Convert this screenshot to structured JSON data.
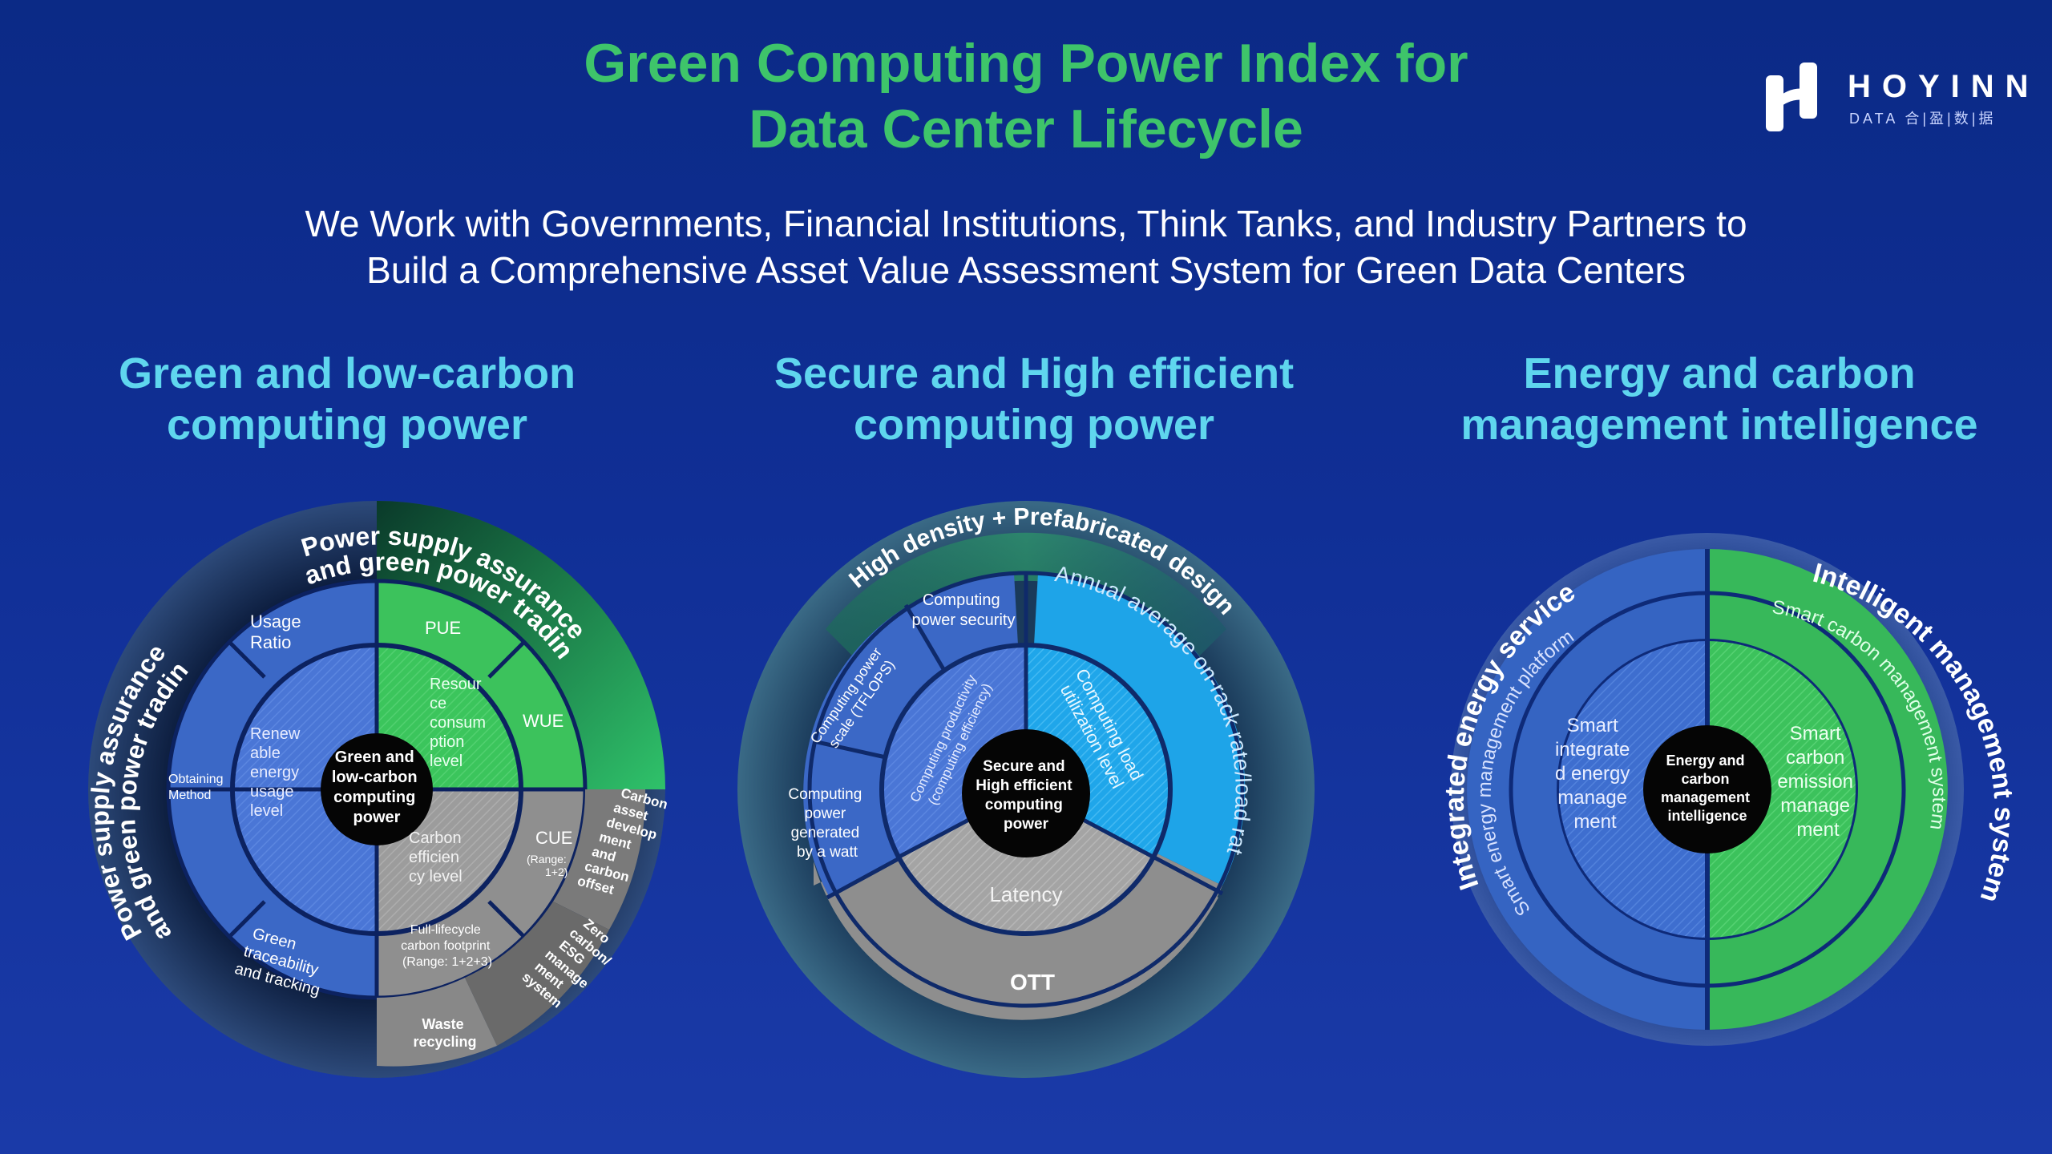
{
  "header": {
    "title_line1": "Green Computing Power Index for",
    "title_line2": "Data Center Lifecycle",
    "subtitle_line1": "We Work with Governments, Financial Institutions, Think Tanks, and Industry Partners to",
    "subtitle_line2": "Build a Comprehensive Asset Value Assessment System for Green Data Centers"
  },
  "logo": {
    "brand": "HOYINN",
    "sub": "DATA 合|盈|数|据"
  },
  "columns": [
    {
      "heading_line1": "Green and low-carbon",
      "heading_line2": "computing power"
    },
    {
      "heading_line1": "Secure and High efficient",
      "heading_line2": "computing power"
    },
    {
      "heading_line1": "Energy and carbon",
      "heading_line2": "management intelligence"
    }
  ],
  "wheel1": {
    "center": [
      "Green and",
      "low-carbon",
      "computing",
      "power"
    ],
    "outer_arc": "Power supply assurance and green power tradin",
    "outer_arc_top_1": "Power supply assurance",
    "outer_arc_top_2": "and green power tradin",
    "outer_arc_left_1": "Power supply assurance",
    "outer_arc_left_2": "and green power tradin",
    "usage_ratio": [
      "Usage",
      "Ratio"
    ],
    "obtaining": [
      "Obtaining",
      "Method"
    ],
    "renewable": [
      "Renew",
      "able",
      "energy",
      "usage",
      "level"
    ],
    "traceability": [
      "Green",
      "traceability",
      "and tracking"
    ],
    "pue": "PUE",
    "wue": "WUE",
    "resource": [
      "Resour",
      "ce",
      "consum",
      "ption",
      "level"
    ],
    "carbon_eff": [
      "Carbon",
      "efficien",
      "cy level"
    ],
    "cue": "CUE",
    "cue_range": [
      "(Range:",
      "1+2)"
    ],
    "full_lifecycle": [
      "Full-lifecycle",
      "carbon footprint",
      "(Range: 1+2+3)"
    ],
    "waste": [
      "Waste",
      "recycling"
    ],
    "zero_carbon": [
      "Zero",
      "carbon/",
      "ESG",
      "manage",
      "ment",
      "system"
    ],
    "carbon_asset": [
      "Carbon",
      "asset",
      "develop",
      "ment",
      "and",
      "carbon",
      "offset"
    ]
  },
  "wheel2": {
    "center": [
      "Secure and",
      "High efficient",
      "computing",
      "power"
    ],
    "outer_arc": "High density + Prefabricated design",
    "computing_security": [
      "Computing",
      "power security"
    ],
    "computing_scale": [
      "Computing power",
      "scale (TFLOPS)"
    ],
    "computing_watt": [
      "Computing",
      "power",
      "generated",
      "by a watt"
    ],
    "productivity": [
      "Computing productivity",
      "(computing efficiency)"
    ],
    "load_util": [
      "Computing load",
      "utilization level"
    ],
    "annual_rate": "Annual average on-rack rate/load rate",
    "latency": "Latency",
    "ott": "OTT"
  },
  "wheel3": {
    "center": [
      "Energy and",
      "carbon",
      "management",
      "intelligence"
    ],
    "left_outer": "Integrated energy service",
    "right_outer": "Intelligent management system",
    "left_arc": "Smart energy management platform",
    "right_arc": "Smart carbon management system",
    "left_inner": [
      "Smart",
      "integrate",
      "d energy",
      "manage",
      "ment"
    ],
    "right_inner": [
      "Smart",
      "carbon",
      "emission",
      "manage",
      "ment"
    ]
  },
  "colors": {
    "title_green": "#3ec46a",
    "heading_cyan": "#5fd6ee",
    "blue_segment": "#3f6fd0",
    "green_segment": "#3cc25c",
    "gray_segment": "#9a9a9a",
    "cyan_segment": "#23a8ea"
  }
}
